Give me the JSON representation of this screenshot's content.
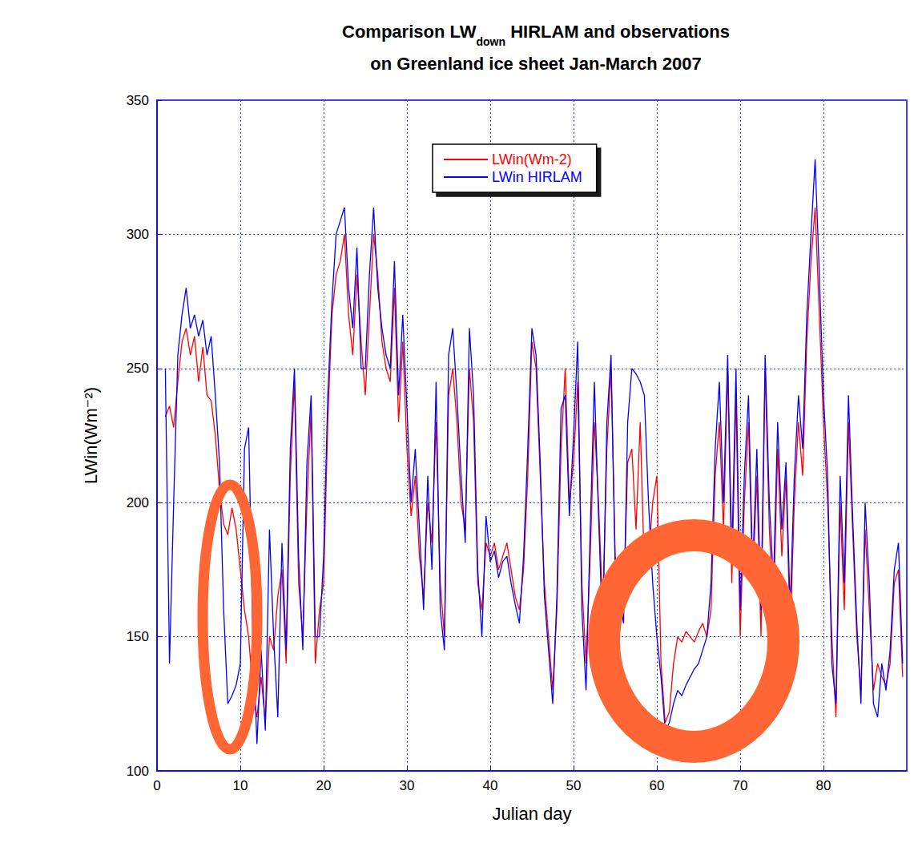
{
  "chart_data": {
    "type": "line",
    "title": [
      "Comparison LW",
      "down",
      " HIRLAM and observations"
    ],
    "subtitle": "on Greenland ice sheet Jan-March 2007",
    "xlabel": "Julian day",
    "ylabel": "LWin(Wm⁻²)",
    "xlim": [
      0,
      90
    ],
    "xticks": [
      0,
      10,
      20,
      30,
      40,
      50,
      60,
      70,
      80
    ],
    "ylim": [
      100,
      350
    ],
    "yticks": [
      100,
      150,
      200,
      250,
      300,
      350
    ],
    "grid": true,
    "legend": "top",
    "x": [
      1,
      1.5,
      2,
      2.5,
      3,
      3.5,
      4,
      4.5,
      5,
      5.5,
      6,
      6.5,
      7,
      7.5,
      8,
      8.5,
      9,
      9.5,
      10,
      10.5,
      11,
      11.5,
      12,
      12.5,
      13,
      13.5,
      14,
      14.5,
      15,
      15.5,
      16,
      16.5,
      17,
      17.5,
      18,
      18.5,
      19,
      19.5,
      20,
      20.5,
      21,
      21.5,
      22,
      22.5,
      23,
      23.5,
      24,
      24.5,
      25,
      25.5,
      26,
      26.5,
      27,
      27.5,
      28,
      28.5,
      29,
      29.5,
      30,
      30.5,
      31,
      31.5,
      32,
      32.5,
      33,
      33.5,
      34,
      34.5,
      35,
      35.5,
      36,
      36.5,
      37,
      37.5,
      38,
      38.5,
      39,
      39.5,
      40,
      40.5,
      41,
      41.5,
      42,
      42.5,
      43,
      43.5,
      44,
      44.5,
      45,
      45.5,
      46,
      46.5,
      47,
      47.5,
      48,
      48.5,
      49,
      49.5,
      50,
      50.5,
      51,
      51.5,
      52,
      52.5,
      53,
      53.5,
      54,
      54.5,
      55,
      55.5,
      56,
      56.5,
      57,
      57.5,
      58,
      58.5,
      59,
      59.5,
      60,
      60.5,
      61,
      61.5,
      62,
      62.5,
      63,
      63.5,
      64,
      64.5,
      65,
      65.5,
      66,
      66.5,
      67,
      67.5,
      68,
      68.5,
      69,
      69.5,
      70,
      70.5,
      71,
      71.5,
      72,
      72.5,
      73,
      73.5,
      74,
      74.5,
      75,
      75.5,
      76,
      76.5,
      77,
      77.5,
      78,
      78.5,
      79,
      79.5,
      80,
      80.5,
      81,
      81.5,
      82,
      82.5,
      83,
      83.5,
      84,
      84.5,
      85,
      85.5,
      86,
      86.5,
      87,
      87.5,
      88,
      88.5,
      89,
      89.5
    ],
    "series": [
      {
        "name": "LWin(Wm-2)",
        "color": "#ff0000",
        "values": [
          232,
          236,
          228,
          245,
          260,
          265,
          255,
          262,
          245,
          258,
          240,
          238,
          225,
          205,
          192,
          188,
          198,
          190,
          175,
          160,
          150,
          130,
          120,
          135,
          118,
          150,
          145,
          165,
          175,
          140,
          210,
          245,
          170,
          150,
          200,
          235,
          140,
          160,
          170,
          230,
          270,
          285,
          290,
          300,
          270,
          255,
          285,
          260,
          240,
          270,
          300,
          285,
          260,
          250,
          245,
          280,
          230,
          260,
          220,
          195,
          210,
          180,
          165,
          200,
          185,
          230,
          170,
          150,
          240,
          250,
          230,
          200,
          190,
          250,
          230,
          170,
          160,
          185,
          180,
          185,
          175,
          180,
          185,
          175,
          165,
          160,
          175,
          210,
          260,
          250,
          210,
          170,
          150,
          130,
          160,
          220,
          250,
          200,
          215,
          245,
          170,
          140,
          180,
          230,
          200,
          160,
          220,
          250,
          180,
          170,
          160,
          215,
          220,
          190,
          230,
          175,
          180,
          200,
          210,
          140,
          118,
          122,
          140,
          150,
          148,
          152,
          150,
          148,
          152,
          155,
          150,
          160,
          210,
          230,
          190,
          250,
          170,
          240,
          150,
          200,
          230,
          170,
          210,
          150,
          250,
          190,
          160,
          220,
          180,
          210,
          150,
          200,
          230,
          210,
          260,
          290,
          310,
          270,
          230,
          200,
          150,
          120,
          200,
          160,
          230,
          190,
          150,
          130,
          190,
          160,
          130,
          140,
          135,
          132,
          140,
          170,
          175,
          135
        ]
      },
      {
        "name": "LWin HIRLAM",
        "color": "#0000ff",
        "values": [
          250,
          140,
          200,
          255,
          270,
          280,
          265,
          270,
          262,
          268,
          255,
          262,
          240,
          215,
          160,
          125,
          128,
          132,
          140,
          220,
          228,
          150,
          110,
          145,
          115,
          190,
          150,
          120,
          185,
          145,
          220,
          250,
          180,
          145,
          215,
          240,
          150,
          150,
          180,
          240,
          275,
          300,
          305,
          310,
          280,
          265,
          295,
          250,
          250,
          285,
          310,
          280,
          265,
          255,
          250,
          290,
          240,
          270,
          235,
          200,
          220,
          190,
          160,
          210,
          175,
          245,
          160,
          145,
          255,
          265,
          240,
          210,
          185,
          265,
          240,
          175,
          150,
          195,
          178,
          182,
          172,
          178,
          180,
          170,
          162,
          155,
          180,
          220,
          265,
          255,
          215,
          165,
          145,
          125,
          165,
          235,
          240,
          195,
          225,
          260,
          160,
          130,
          190,
          245,
          195,
          150,
          230,
          255,
          175,
          165,
          155,
          230,
          250,
          248,
          245,
          240,
          200,
          170,
          150,
          135,
          115,
          118,
          125,
          130,
          128,
          132,
          135,
          138,
          140,
          145,
          150,
          170,
          220,
          245,
          200,
          255,
          180,
          250,
          160,
          210,
          240,
          175,
          220,
          160,
          255,
          200,
          170,
          230,
          190,
          215,
          160,
          210,
          240,
          220,
          270,
          300,
          328,
          285,
          240,
          210,
          140,
          125,
          210,
          170,
          240,
          195,
          155,
          125,
          200,
          170,
          125,
          120,
          140,
          130,
          145,
          175,
          185,
          140
        ]
      }
    ]
  }
}
